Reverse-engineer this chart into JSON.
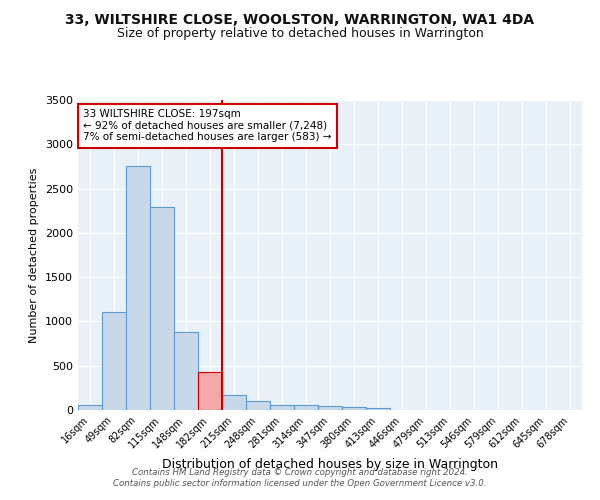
{
  "title": "33, WILTSHIRE CLOSE, WOOLSTON, WARRINGTON, WA1 4DA",
  "subtitle": "Size of property relative to detached houses in Warrington",
  "xlabel": "Distribution of detached houses by size in Warrington",
  "ylabel": "Number of detached properties",
  "bin_labels": [
    "16sqm",
    "49sqm",
    "82sqm",
    "115sqm",
    "148sqm",
    "182sqm",
    "215sqm",
    "248sqm",
    "281sqm",
    "314sqm",
    "347sqm",
    "380sqm",
    "413sqm",
    "446sqm",
    "479sqm",
    "513sqm",
    "546sqm",
    "579sqm",
    "612sqm",
    "645sqm",
    "678sqm"
  ],
  "bar_values": [
    55,
    1105,
    2750,
    2290,
    880,
    430,
    170,
    100,
    55,
    55,
    40,
    30,
    25,
    0,
    0,
    0,
    0,
    0,
    0,
    0,
    0
  ],
  "bar_color": "#c8d8e8",
  "bar_edge_color": "#5b9bd5",
  "highlight_bar_index": 5,
  "highlight_bar_color": "#f4a8a8",
  "highlight_bar_edge_color": "#cc0000",
  "vline_x": 5.5,
  "vline_color": "#cc0000",
  "annotation_text": "33 WILTSHIRE CLOSE: 197sqm\n← 92% of detached houses are smaller (7,248)\n7% of semi-detached houses are larger (583) →",
  "annotation_box_color": "#ffffff",
  "annotation_box_edge": "#cc0000",
  "ylim": [
    0,
    3500
  ],
  "yticks": [
    0,
    500,
    1000,
    1500,
    2000,
    2500,
    3000,
    3500
  ],
  "footer_text": "Contains HM Land Registry data © Crown copyright and database right 2024.\nContains public sector information licensed under the Open Government Licence v3.0.",
  "bg_color": "#e8f0f8",
  "grid_color": "#ffffff",
  "title_fontsize": 10,
  "subtitle_fontsize": 9,
  "ylabel_fontsize": 8,
  "xlabel_fontsize": 9,
  "tick_fontsize": 7
}
